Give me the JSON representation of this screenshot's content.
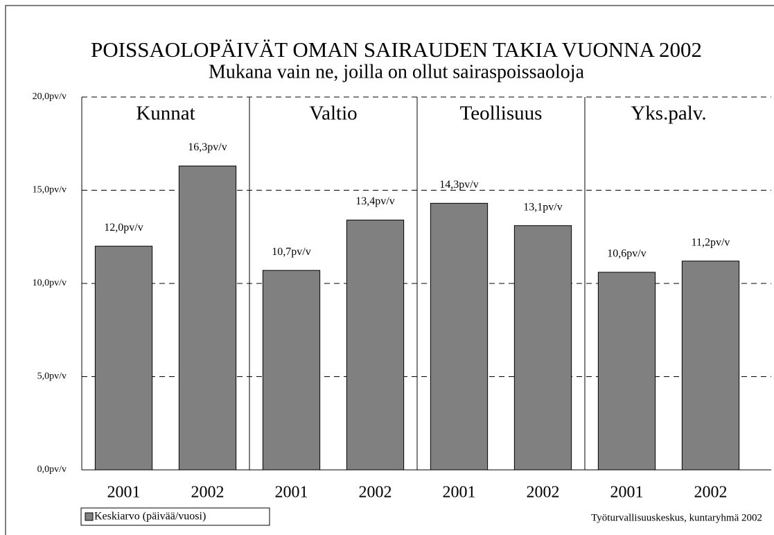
{
  "chart_data": {
    "type": "bar",
    "title": "POISSAOLOPÄIVÄT OMAN SAIRAUDEN TAKIA VUONNA 2002",
    "subtitle": "Mukana vain ne, joilla on ollut sairaspoissaoloja",
    "groups": [
      "Kunnat",
      "Valtio",
      "Teollisuus",
      "Yks.palv."
    ],
    "categories": [
      "2001",
      "2002",
      "2001",
      "2002",
      "2001",
      "2002",
      "2001",
      "2002"
    ],
    "series": [
      {
        "name": "Keskiarvo (päivää/vuosi)",
        "color": "#808080",
        "values": [
          12.0,
          16.3,
          10.7,
          13.4,
          14.3,
          13.1,
          10.6,
          11.2
        ],
        "value_labels": [
          "12,0pv/v",
          "16,3pv/v",
          "10,7pv/v",
          "13,4pv/v",
          "14,3pv/v",
          "13,1pv/v",
          "10,6pv/v",
          "11,2pv/v"
        ]
      }
    ],
    "ylim": [
      0,
      20
    ],
    "yticks": [
      {
        "value": 0,
        "label": "0,0pv/v"
      },
      {
        "value": 5,
        "label": "5,0pv/v"
      },
      {
        "value": 10,
        "label": "10,0pv/v"
      },
      {
        "value": 15,
        "label": "15,0pv/v"
      },
      {
        "value": 20,
        "label": "20,0pv/v"
      }
    ],
    "grid": true,
    "legend": "bottom-left",
    "source": "Työturvallisuuskeskus, kuntaryhmä 2002"
  }
}
